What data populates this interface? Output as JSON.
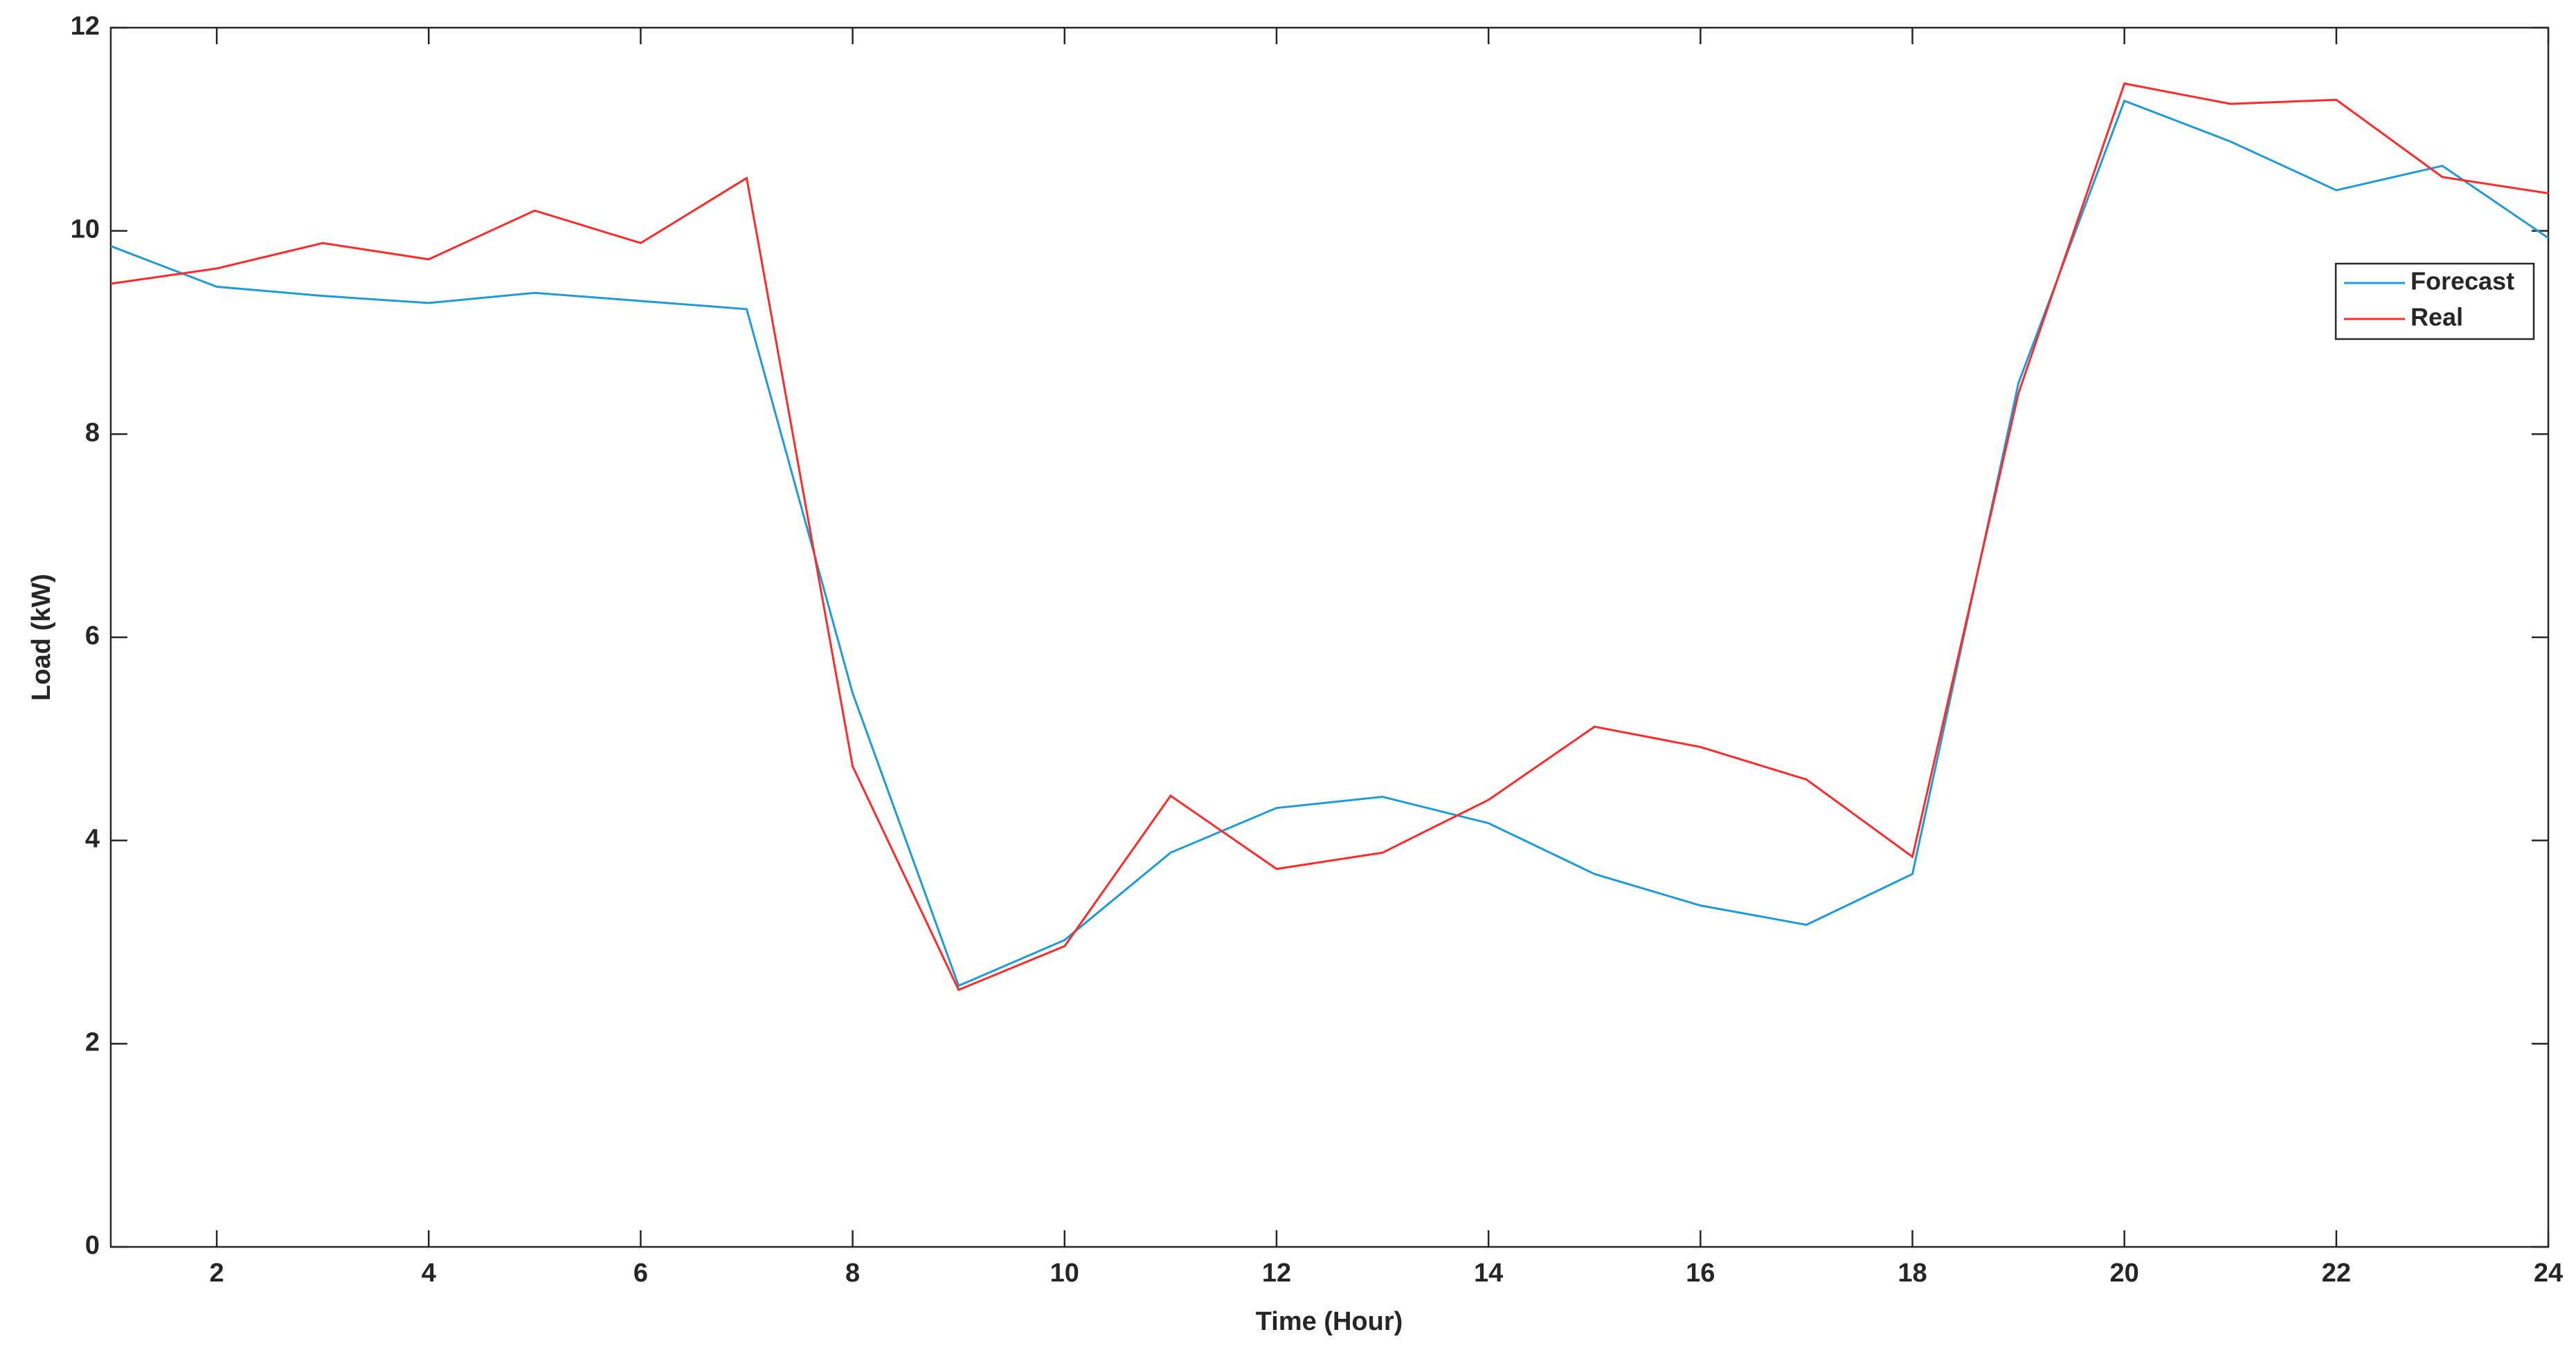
{
  "chart_data": {
    "type": "line",
    "xlabel": "Time (Hour)",
    "ylabel": "Load (kW)",
    "x": [
      1,
      2,
      3,
      4,
      5,
      6,
      7,
      8,
      9,
      10,
      11,
      12,
      13,
      14,
      15,
      16,
      17,
      18,
      19,
      20,
      21,
      22,
      23,
      24
    ],
    "series": [
      {
        "name": "Forecast",
        "color": "#1f9bd7",
        "values": [
          9.85,
          9.45,
          9.36,
          9.29,
          9.39,
          9.31,
          9.23,
          5.45,
          2.57,
          3.02,
          3.88,
          4.32,
          4.43,
          4.17,
          3.67,
          3.36,
          3.17,
          3.67,
          8.5,
          11.28,
          10.88,
          10.4,
          10.64,
          9.93
        ]
      },
      {
        "name": "Real",
        "color": "#ff2a2a",
        "values": [
          9.48,
          9.63,
          9.88,
          9.72,
          10.2,
          9.88,
          10.52,
          4.73,
          2.53,
          2.96,
          4.44,
          3.72,
          3.88,
          4.4,
          5.12,
          4.92,
          4.6,
          3.84,
          8.4,
          11.45,
          11.25,
          11.29,
          10.53,
          10.37
        ]
      }
    ],
    "xlim": [
      1,
      24
    ],
    "xticks": [
      2,
      4,
      6,
      8,
      10,
      12,
      14,
      16,
      18,
      20,
      22,
      24
    ],
    "ylim": [
      0,
      12
    ],
    "yticks": [
      0,
      2,
      4,
      6,
      8,
      10,
      12
    ],
    "grid": false,
    "legend": "northeast"
  }
}
